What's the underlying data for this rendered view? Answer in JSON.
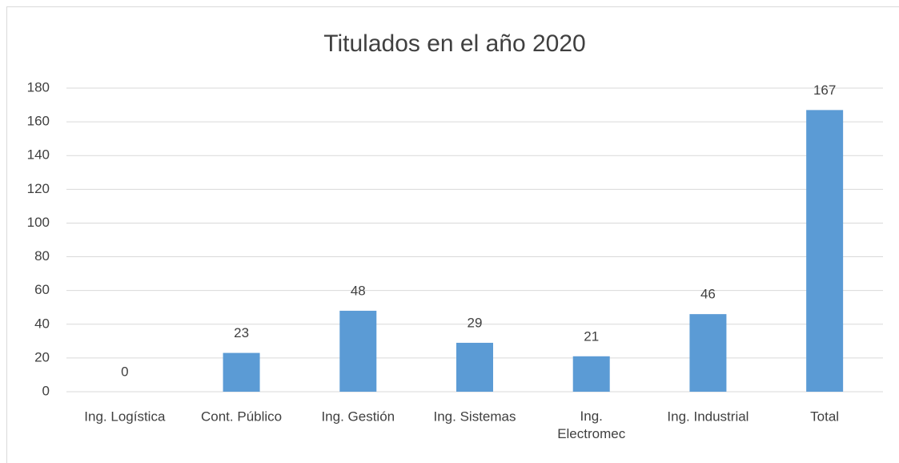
{
  "chart_data": {
    "type": "bar",
    "title": "Titulados en el año 2020",
    "categories": [
      "Ing. Logística",
      "Cont. Público",
      "Ing. Gestión",
      "Ing. Sistemas",
      "Ing.\nElectromec",
      "Ing. Industrial",
      "Total"
    ],
    "values": [
      0,
      23,
      48,
      29,
      21,
      46,
      167
    ],
    "color": "#5b9bd5",
    "ylim": [
      0,
      180
    ],
    "yticks": [
      0,
      20,
      40,
      60,
      80,
      100,
      120,
      140,
      160,
      180
    ],
    "grid": true
  }
}
